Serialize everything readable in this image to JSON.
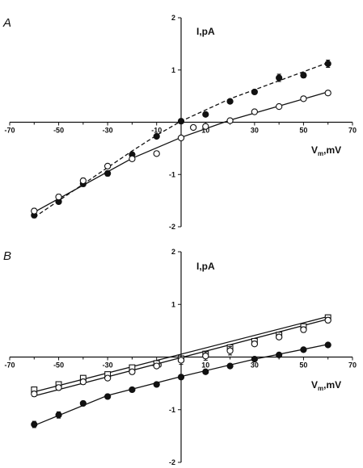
{
  "chart_data": [
    {
      "panel": "A",
      "type": "scatter",
      "xlabel": {
        "main": "V",
        "sub": "m",
        "rest": ",mV"
      },
      "ylabel": "I,pA",
      "xlim": [
        -70,
        70
      ],
      "ylim": [
        -2,
        2
      ],
      "x_ticks": [
        -70,
        -50,
        -30,
        -10,
        10,
        30,
        50,
        70
      ],
      "y_ticks": [
        2,
        1,
        -1,
        -2
      ],
      "series": [
        {
          "marker": "filled-circle",
          "line": "dashed",
          "points": [
            [
              -60,
              -1.78
            ],
            [
              -50,
              -1.52
            ],
            [
              -40,
              -1.18
            ],
            [
              -30,
              -0.98
            ],
            [
              -20,
              -0.62
            ],
            [
              -10,
              -0.27
            ],
            [
              0,
              0.02
            ],
            [
              10,
              0.15
            ],
            [
              20,
              0.4
            ],
            [
              30,
              0.58
            ],
            [
              40,
              0.85
            ],
            [
              50,
              0.9
            ],
            [
              60,
              1.12
            ]
          ],
          "errors": [
            0.05,
            0.04,
            0.05,
            0.05,
            0.03,
            0.04,
            0.03,
            0.04,
            0.03,
            0.04,
            0.07,
            0.05,
            0.07
          ]
        },
        {
          "marker": "open-circle",
          "line": "solid",
          "points": [
            [
              -60,
              -1.7
            ],
            [
              -50,
              -1.43
            ],
            [
              -40,
              -1.12
            ],
            [
              -30,
              -0.84
            ],
            [
              -20,
              -0.7
            ],
            [
              -10,
              -0.6
            ],
            [
              0,
              -0.3
            ],
            [
              5,
              -0.1
            ],
            [
              10,
              -0.08
            ],
            [
              20,
              0.03
            ],
            [
              30,
              0.2
            ],
            [
              40,
              0.3
            ],
            [
              50,
              0.45
            ],
            [
              60,
              0.56
            ]
          ],
          "errors": [
            0.05,
            0.05,
            0.05,
            0.04,
            0.04,
            0.04,
            0.03,
            0.03,
            0.03,
            0.03,
            0.03,
            0.03,
            0.03,
            0.04
          ]
        }
      ],
      "fit_lines": [
        {
          "series": 0,
          "style": "dashed",
          "points": [
            [
              -60,
              -1.82
            ],
            [
              -20,
              -0.55
            ],
            [
              -10,
              -0.25
            ],
            [
              0,
              0.02
            ],
            [
              20,
              0.45
            ],
            [
              60,
              1.14
            ]
          ]
        },
        {
          "series": 1,
          "style": "solid",
          "points": [
            [
              -60,
              -1.72
            ],
            [
              -20,
              -0.69
            ],
            [
              0,
              -0.29
            ],
            [
              20,
              0.04
            ],
            [
              60,
              0.58
            ]
          ]
        }
      ]
    },
    {
      "panel": "B",
      "type": "scatter",
      "xlabel": {
        "main": "V",
        "sub": "m",
        "rest": ",mV"
      },
      "ylabel": "I,pA",
      "xlim": [
        -70,
        70
      ],
      "ylim": [
        -2,
        2
      ],
      "x_ticks": [
        -70,
        -50,
        -30,
        -10,
        10,
        30,
        50,
        70
      ],
      "y_ticks": [
        2,
        1,
        -1,
        -2
      ],
      "series": [
        {
          "marker": "open-square",
          "line": "solid",
          "points": [
            [
              -60,
              -0.62
            ],
            [
              -50,
              -0.52
            ],
            [
              -40,
              -0.4
            ],
            [
              -30,
              -0.33
            ],
            [
              -20,
              -0.2
            ],
            [
              -10,
              -0.12
            ],
            [
              0,
              -0.03
            ],
            [
              10,
              0.06
            ],
            [
              20,
              0.18
            ],
            [
              30,
              0.3
            ],
            [
              40,
              0.42
            ],
            [
              50,
              0.58
            ],
            [
              60,
              0.75
            ]
          ],
          "errors": [
            0.05,
            0.04,
            0.05,
            0.04,
            0.04,
            0.04,
            0.04,
            0.04,
            0.04,
            0.04,
            0.05,
            0.05,
            0.05
          ]
        },
        {
          "marker": "open-circle",
          "line": "solid",
          "points": [
            [
              -60,
              -0.7
            ],
            [
              -50,
              -0.58
            ],
            [
              -40,
              -0.47
            ],
            [
              -30,
              -0.4
            ],
            [
              -20,
              -0.28
            ],
            [
              -10,
              -0.17
            ],
            [
              0,
              -0.06
            ],
            [
              10,
              0.02
            ],
            [
              20,
              0.12
            ],
            [
              30,
              0.25
            ],
            [
              40,
              0.38
            ],
            [
              50,
              0.52
            ],
            [
              60,
              0.7
            ]
          ],
          "errors": [
            0.05,
            0.05,
            0.05,
            0.04,
            0.04,
            0.04,
            0.08,
            0.08,
            0.08,
            0.04,
            0.04,
            0.05,
            0.05
          ]
        },
        {
          "marker": "filled-circle",
          "line": "solid",
          "points": [
            [
              -60,
              -1.28
            ],
            [
              -50,
              -1.1
            ],
            [
              -40,
              -0.88
            ],
            [
              -30,
              -0.75
            ],
            [
              -20,
              -0.62
            ],
            [
              -10,
              -0.52
            ],
            [
              0,
              -0.38
            ],
            [
              10,
              -0.28
            ],
            [
              20,
              -0.17
            ],
            [
              30,
              -0.04
            ],
            [
              40,
              0.04
            ],
            [
              50,
              0.14
            ],
            [
              60,
              0.23
            ]
          ],
          "errors": [
            0.06,
            0.06,
            0.04,
            0.04,
            0.03,
            0.03,
            0.03,
            0.03,
            0.03,
            0.03,
            0.03,
            0.03,
            0.03
          ]
        }
      ],
      "fit_lines": [
        {
          "series": 0,
          "style": "solid",
          "points": [
            [
              -60,
              -0.66
            ],
            [
              60,
              0.77
            ]
          ]
        },
        {
          "series": 1,
          "style": "solid",
          "points": [
            [
              -60,
              -0.74
            ],
            [
              60,
              0.72
            ]
          ]
        },
        {
          "series": 2,
          "style": "solid",
          "points": [
            [
              -60,
              -1.3
            ],
            [
              -30,
              -0.73
            ],
            [
              0,
              -0.37
            ],
            [
              30,
              -0.04
            ],
            [
              60,
              0.24
            ]
          ]
        }
      ]
    }
  ]
}
